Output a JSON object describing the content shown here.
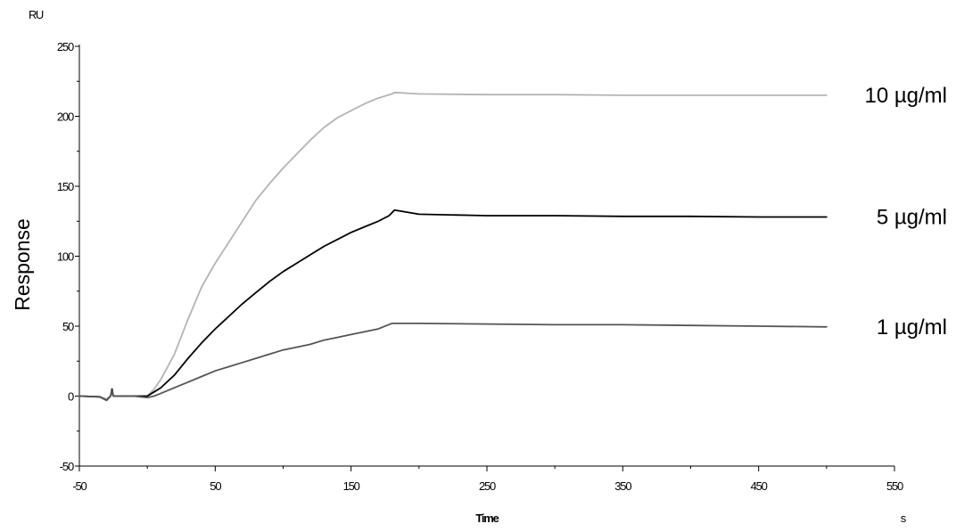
{
  "chart_data": {
    "type": "line",
    "xlabel": "Time",
    "xunit": "s",
    "ylabel": "Response",
    "yunit": "RU",
    "xlim": [
      -50,
      550
    ],
    "ylim": [
      -50,
      250
    ],
    "xticks": [
      -50,
      50,
      150,
      250,
      350,
      450,
      550
    ],
    "yticks": [
      -50,
      0,
      50,
      100,
      150,
      200,
      250
    ],
    "grid": false,
    "series": [
      {
        "name": "10 µg/ml",
        "color": "#b4b4b4",
        "x": [
          -50,
          -35,
          -30,
          -27,
          -26,
          -25,
          -20,
          -10,
          0,
          5,
          10,
          20,
          30,
          40,
          50,
          60,
          70,
          80,
          90,
          100,
          110,
          120,
          130,
          140,
          150,
          160,
          170,
          180,
          182,
          200,
          250,
          300,
          350,
          400,
          450,
          500
        ],
        "y": [
          0,
          -0.5,
          -2,
          0,
          3,
          0,
          0,
          0,
          0,
          5,
          12,
          30,
          55,
          78,
          95,
          110,
          125,
          140,
          152,
          163,
          173,
          183,
          192,
          199,
          204,
          209,
          213,
          216,
          217,
          216,
          215.5,
          215.5,
          215,
          215,
          215,
          215
        ]
      },
      {
        "name": "5 µg/ml",
        "color": "#000000",
        "x": [
          -50,
          -35,
          -30,
          -27,
          -26,
          -25,
          -20,
          -10,
          0,
          5,
          10,
          20,
          30,
          40,
          50,
          60,
          70,
          80,
          90,
          100,
          110,
          120,
          130,
          140,
          150,
          160,
          170,
          178,
          182,
          200,
          250,
          300,
          350,
          400,
          450,
          500
        ],
        "y": [
          0,
          -0.5,
          -3,
          0,
          5,
          0,
          0,
          0,
          0,
          3,
          6,
          15,
          27,
          38,
          48,
          57,
          66,
          74,
          82,
          89,
          95,
          101,
          107,
          112,
          117,
          121,
          125,
          129,
          133,
          130,
          129,
          129,
          128.5,
          128.5,
          128,
          128
        ]
      },
      {
        "name": "1 µg/ml",
        "color": "#555555",
        "x": [
          -50,
          -35,
          -30,
          -27,
          -26,
          -25,
          -20,
          -10,
          0,
          5,
          10,
          20,
          30,
          40,
          50,
          60,
          70,
          80,
          90,
          100,
          110,
          120,
          130,
          140,
          150,
          160,
          170,
          180,
          200,
          250,
          300,
          350,
          400,
          450,
          500
        ],
        "y": [
          0,
          -0.5,
          -3,
          0,
          4,
          0,
          0,
          0,
          -1,
          0,
          2,
          6,
          10,
          14,
          18,
          21,
          24,
          27,
          30,
          33,
          35,
          37,
          40,
          42,
          44,
          46,
          48,
          52,
          52,
          51.5,
          51,
          51,
          50.5,
          50,
          49.5
        ]
      }
    ]
  }
}
